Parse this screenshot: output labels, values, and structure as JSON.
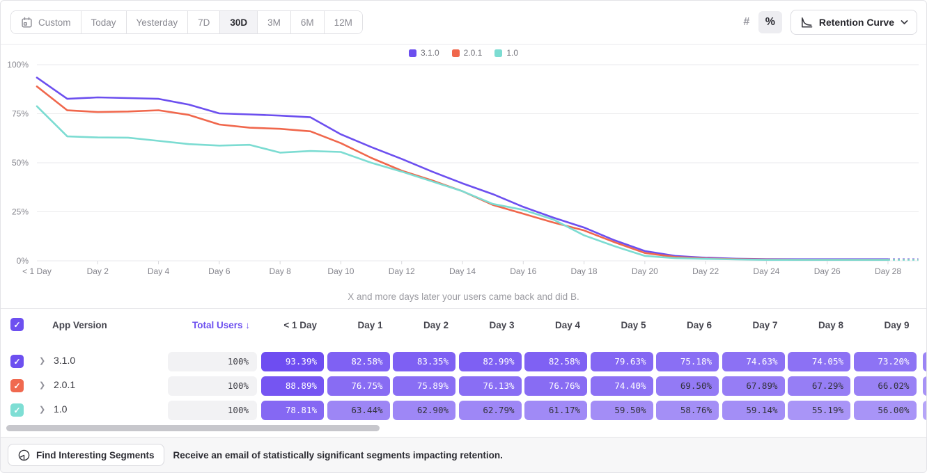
{
  "toolbar": {
    "date_ranges": [
      "Custom",
      "Today",
      "Yesterday",
      "7D",
      "30D",
      "3M",
      "6M",
      "12M"
    ],
    "selected_range": "30D",
    "format_toggle": {
      "options": [
        "#",
        "%"
      ],
      "selected": "%"
    },
    "chart_type": {
      "label": "Retention Curve",
      "icon": "retention-curve-icon"
    }
  },
  "legend": [
    {
      "label": "3.1.0",
      "color": "#6C4FEF"
    },
    {
      "label": "2.0.1",
      "color": "#F0674C"
    },
    {
      "label": "1.0",
      "color": "#7CDCD2"
    }
  ],
  "chart_data": {
    "type": "line",
    "caption": "X and more days later your users came back and did B.",
    "ylabel": "",
    "xlabel": "",
    "ylim": [
      0,
      100
    ],
    "xlim_days": [
      0,
      29
    ],
    "grid": true,
    "legend_position": "top-center",
    "y_ticks": [
      0,
      25,
      50,
      75,
      100
    ],
    "y_tick_labels": [
      "0%",
      "25%",
      "50%",
      "75%",
      "100%"
    ],
    "x_tick_days": [
      0,
      2,
      4,
      6,
      8,
      10,
      12,
      14,
      16,
      18,
      20,
      22,
      24,
      26,
      28
    ],
    "x_tick_labels": [
      "< 1 Day",
      "Day 2",
      "Day 4",
      "Day 6",
      "Day 8",
      "Day 10",
      "Day 12",
      "Day 14",
      "Day 16",
      "Day 18",
      "Day 20",
      "Day 22",
      "Day 24",
      "Day 26",
      "Day 28"
    ],
    "dashed_projection_from_day": 28,
    "series": [
      {
        "name": "3.1.0",
        "color": "#6C4FEF",
        "values": [
          93.39,
          82.58,
          83.35,
          82.99,
          82.58,
          79.63,
          75.18,
          74.63,
          74.05,
          73.2,
          64.5,
          58,
          52,
          45.5,
          39.5,
          34,
          27.5,
          22,
          17,
          10.5,
          5,
          2.5,
          1.6,
          1.1,
          0.9,
          0.8,
          0.8,
          0.8,
          0.8,
          0.8
        ]
      },
      {
        "name": "2.0.1",
        "color": "#F0674C",
        "values": [
          88.89,
          76.75,
          75.89,
          76.13,
          76.76,
          74.4,
          69.5,
          67.89,
          67.29,
          66.02,
          60,
          52.5,
          46,
          41,
          35.5,
          28.5,
          24,
          19.5,
          15.5,
          9.5,
          4,
          2,
          1.2,
          0.9,
          0.7,
          0.6,
          0.6,
          0.6,
          0.6,
          0.6
        ]
      },
      {
        "name": "1.0",
        "color": "#7CDCD2",
        "values": [
          78.81,
          63.44,
          62.9,
          62.79,
          61.17,
          59.5,
          58.76,
          59.14,
          55.19,
          56.0,
          55.5,
          50,
          45.5,
          40.5,
          35.5,
          29,
          26,
          21,
          13,
          7.5,
          2.5,
          1.4,
          1.0,
          0.7,
          0.5,
          0.5,
          0.5,
          0.5,
          0.5,
          0.5
        ]
      }
    ]
  },
  "table": {
    "headers": {
      "app_version": "App Version",
      "total_users": "Total Users",
      "sort_arrow": "↓",
      "day_columns": [
        "< 1 Day",
        "Day 1",
        "Day 2",
        "Day 3",
        "Day 4",
        "Day 5",
        "Day 6",
        "Day 7",
        "Day 8",
        "Day 9"
      ]
    },
    "pill_base_color": "#6440F0",
    "rows": [
      {
        "label": "3.1.0",
        "checkbox_color": "#6D50F0",
        "checked": true,
        "total": "100%",
        "values": [
          93.39,
          82.58,
          83.35,
          82.99,
          82.58,
          79.63,
          75.18,
          74.63,
          74.05,
          73.2
        ]
      },
      {
        "label": "2.0.1",
        "checkbox_color": "#F0694F",
        "checked": true,
        "total": "100%",
        "values": [
          88.89,
          76.75,
          75.89,
          76.13,
          76.76,
          74.4,
          69.5,
          67.89,
          67.29,
          66.02
        ]
      },
      {
        "label": "1.0",
        "checkbox_color": "#7EDED4",
        "checked": true,
        "total": "100%",
        "values": [
          78.81,
          63.44,
          62.9,
          62.79,
          61.17,
          59.5,
          58.76,
          59.14,
          55.19,
          56.0
        ]
      }
    ],
    "header_checkbox_checked": true,
    "header_checkbox_color": "#6D50F0"
  },
  "footer": {
    "button_label": "Find Interesting Segments",
    "message": "Receive an email of statistically significant segments impacting retention."
  }
}
